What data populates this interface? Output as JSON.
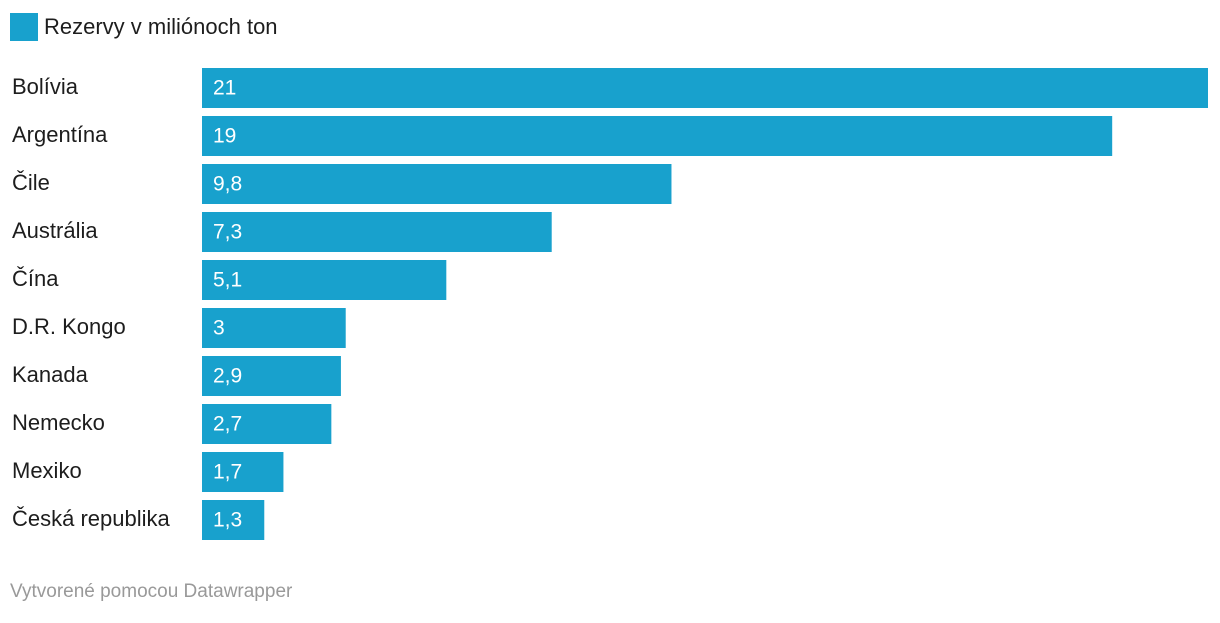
{
  "chart_data": {
    "type": "bar",
    "orientation": "horizontal",
    "categories": [
      "Bolívia",
      "Argentína",
      "Čile",
      "Austrália",
      "Čína",
      "D.R. Kongo",
      "Kanada",
      "Nemecko",
      "Mexiko",
      "Česká republika"
    ],
    "series": [
      {
        "name": "Rezervy v miliónoch ton",
        "color": "#18a1cd",
        "values": [
          21,
          19,
          9.8,
          7.3,
          5.1,
          3,
          2.9,
          2.7,
          1.7,
          1.3
        ],
        "value_labels": [
          "21",
          "19",
          "9,8",
          "7,3",
          "5,1",
          "3",
          "2,9",
          "2,7",
          "1,7",
          "1,3"
        ]
      }
    ],
    "credit": "Vytvorené pomocou Datawrapper"
  }
}
